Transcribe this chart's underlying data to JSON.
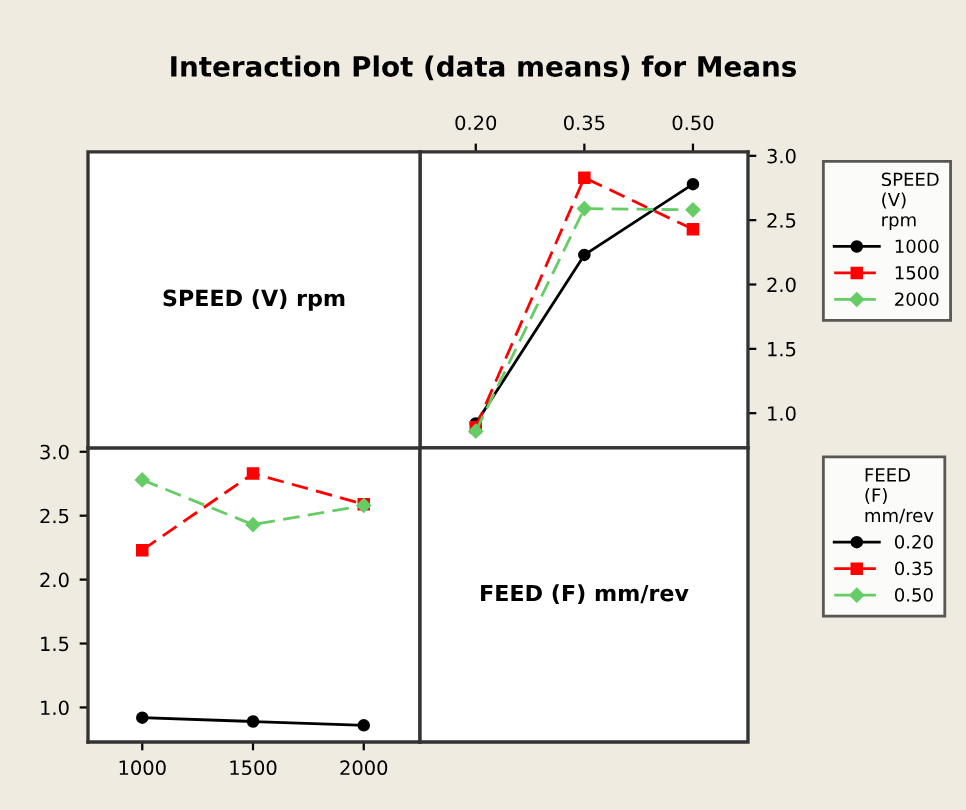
{
  "chart_data": [
    {
      "type": "line",
      "title": "Interaction Plot (data means) for Means",
      "xlabel": "FEED (F) mm/rev",
      "legend_title": "SPEED (V) rpm",
      "legend": "right",
      "grid": false,
      "xlim": [
        0.123,
        0.576
      ],
      "xticks": [
        {
          "value": 0.2,
          "label": "0.20"
        },
        {
          "value": 0.35,
          "label": "0.35"
        },
        {
          "value": 0.5,
          "label": "0.50"
        }
      ],
      "ylim": [
        0.73,
        3.03
      ],
      "yticks": [
        {
          "value": 1.0,
          "label": "1.0"
        },
        {
          "value": 1.5,
          "label": "1.5"
        },
        {
          "value": 2.0,
          "label": "2.0"
        },
        {
          "value": 2.5,
          "label": "2.5"
        },
        {
          "value": 3.0,
          "label": "3.0"
        }
      ],
      "series": [
        {
          "name": "1000",
          "color": "#000000",
          "marker": "circle",
          "line_style": "solid",
          "x": [
            0.2,
            0.35,
            0.5
          ],
          "values": [
            0.92,
            2.23,
            2.78
          ]
        },
        {
          "name": "1500",
          "color": "#ff0000",
          "marker": "square",
          "line_style": "dashed",
          "x": [
            0.2,
            0.35,
            0.5
          ],
          "values": [
            0.89,
            2.83,
            2.43
          ]
        },
        {
          "name": "2000",
          "color": "#66cc66",
          "marker": "diamond",
          "line_style": "dashed",
          "x": [
            0.2,
            0.35,
            0.5
          ],
          "values": [
            0.86,
            2.59,
            2.58
          ]
        }
      ]
    },
    {
      "type": "line",
      "xlabel": "SPEED (V) rpm",
      "legend_title": "FEED (F) mm/rev",
      "legend": "right",
      "grid": false,
      "xlim": [
        755,
        2254
      ],
      "xticks": [
        1000,
        1500,
        2000
      ],
      "ylim": [
        0.73,
        3.03
      ],
      "yticks": [
        {
          "value": 1.0,
          "label": "1.0"
        },
        {
          "value": 1.5,
          "label": "1.5"
        },
        {
          "value": 2.0,
          "label": "2.0"
        },
        {
          "value": 2.5,
          "label": "2.5"
        },
        {
          "value": 3.0,
          "label": "3.0"
        }
      ],
      "series": [
        {
          "name": "0.20",
          "color": "#000000",
          "marker": "circle",
          "line_style": "solid",
          "x": [
            1000,
            1500,
            2000
          ],
          "values": [
            0.92,
            0.89,
            0.86
          ]
        },
        {
          "name": "0.35",
          "color": "#ff0000",
          "marker": "square",
          "line_style": "dashed",
          "x": [
            1000,
            1500,
            2000
          ],
          "values": [
            2.23,
            2.83,
            2.59
          ]
        },
        {
          "name": "0.50",
          "color": "#66cc66",
          "marker": "diamond",
          "line_style": "dashed",
          "x": [
            1000,
            1500,
            2000
          ],
          "values": [
            2.78,
            2.43,
            2.58
          ]
        }
      ]
    }
  ]
}
